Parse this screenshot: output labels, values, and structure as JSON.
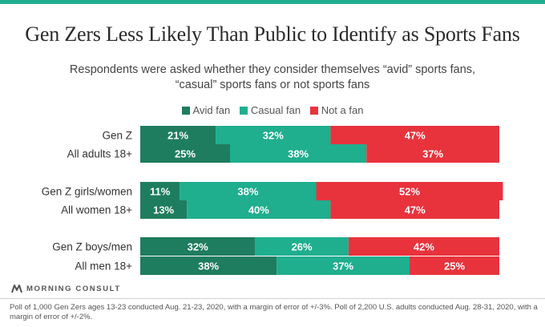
{
  "title": "Gen Zers Less Likely Than Public to Identify as Sports Fans",
  "subtitle": "Respondents were asked whether they consider themselves “avid” sports fans, “casual” sports fans or not sports fans",
  "brand": "MORNING CONSULT",
  "footnote": "Poll of 1,000 Gen Zers ages 13-23 conducted Aug. 21-23, 2020, with a margin of error of +/-3%. Poll of 2,200 U.S. adults conducted Aug. 28-31, 2020, with a margin of error of +/-2%.",
  "colors": {
    "avid": "#1e7d5e",
    "casual": "#1fae8e",
    "not": "#e8333c",
    "accent": "#1fae8e"
  },
  "chart_data": {
    "type": "bar",
    "orientation": "horizontal",
    "stacked": true,
    "percent_scale": true,
    "xlim": [
      0,
      100
    ],
    "grid": false,
    "legend_position": "top",
    "unit": "%",
    "categories": [
      "Gen Z",
      "All adults 18+",
      "Gen Z girls/women",
      "All women 18+",
      "Gen Z boys/men",
      "All men 18+"
    ],
    "series": [
      {
        "name": "Avid fan",
        "color": "#1e7d5e",
        "values": [
          21,
          25,
          11,
          13,
          32,
          38
        ]
      },
      {
        "name": "Casual fan",
        "color": "#1fae8e",
        "values": [
          32,
          38,
          38,
          40,
          26,
          37
        ]
      },
      {
        "name": "Not a fan",
        "color": "#e8333c",
        "values": [
          47,
          37,
          52,
          47,
          42,
          25
        ]
      }
    ]
  }
}
